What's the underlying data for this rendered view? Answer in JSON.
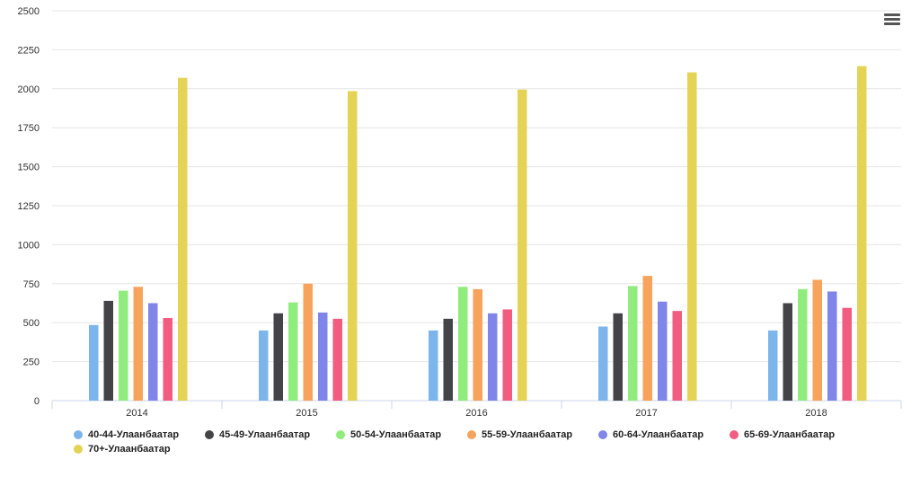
{
  "chart_data": {
    "type": "bar",
    "categories": [
      "2014",
      "2015",
      "2016",
      "2017",
      "2018"
    ],
    "series": [
      {
        "name": "40-44-Улаанбаатар",
        "color": "#7cb5ec",
        "values": [
          485,
          450,
          450,
          475,
          450
        ]
      },
      {
        "name": "45-49-Улаанбаатар",
        "color": "#434348",
        "values": [
          640,
          560,
          525,
          560,
          625
        ]
      },
      {
        "name": "50-54-Улаанбаатар",
        "color": "#90ed7d",
        "values": [
          705,
          630,
          730,
          735,
          715
        ]
      },
      {
        "name": "55-59-Улаанбаатар",
        "color": "#f7a35c",
        "values": [
          730,
          750,
          715,
          800,
          775
        ]
      },
      {
        "name": "60-64-Улаанбаатар",
        "color": "#8085e9",
        "values": [
          625,
          565,
          560,
          635,
          700
        ]
      },
      {
        "name": "65-69-Улаанбаатар",
        "color": "#f15c80",
        "values": [
          530,
          525,
          585,
          575,
          595
        ]
      },
      {
        "name": "70+-Улаанбаатар",
        "color": "#e4d354",
        "values": [
          2070,
          1985,
          1995,
          2105,
          2145
        ]
      }
    ],
    "yticks": [
      "0",
      "250",
      "500",
      "750",
      "1000",
      "1250",
      "1500",
      "1750",
      "2000",
      "2250",
      "2500"
    ],
    "ylim": [
      0,
      2500
    ],
    "grid": true,
    "legend_position": "bottom"
  },
  "menu": {
    "icon": "hamburger-menu-icon"
  }
}
